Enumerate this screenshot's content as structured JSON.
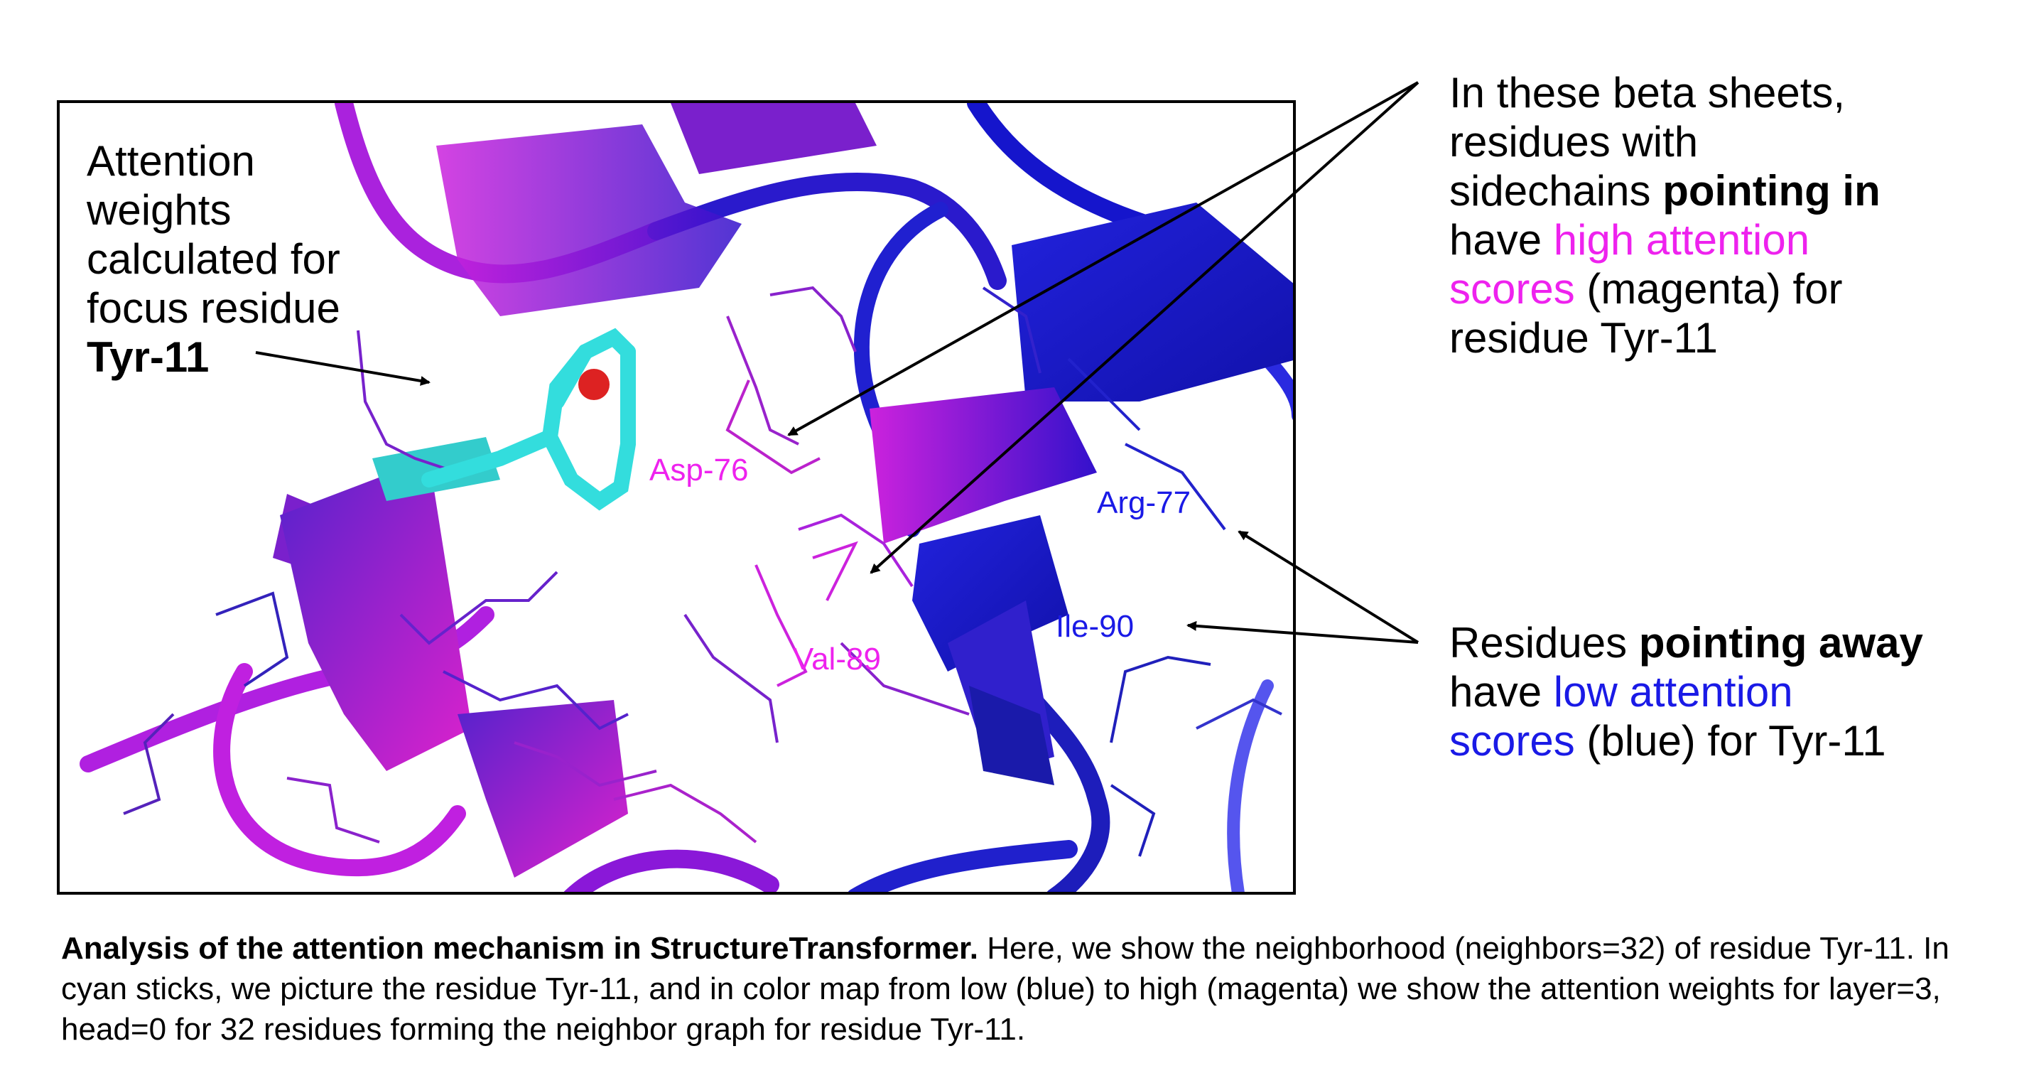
{
  "figure": {
    "residue_labels": {
      "asp76": "Asp-76",
      "val89": "Val-89",
      "arg77": "Arg-77",
      "ile90": "Ile-90"
    },
    "colors": {
      "high_attention": "#ee22ee",
      "low_attention": "#1a1ae6",
      "focus_residue": "#33dddd",
      "oxygen": "#dd2222"
    }
  },
  "annotation_left": {
    "line1": "Attention",
    "line2": "weights",
    "line3": "calculated for",
    "line4": "focus residue",
    "line5": "Tyr-11"
  },
  "annotation_top_right": {
    "line1": "In these beta sheets,",
    "line2": "residues with",
    "line3_plain": "sidechains ",
    "line3_bold": "pointing in",
    "line4_plain": "have ",
    "line4_colored": "high attention",
    "line5_colored": "scores",
    "line5_plain": " (magenta) for",
    "line6": "residue Tyr-11"
  },
  "annotation_bottom_right": {
    "line1_plain": "Residues ",
    "line1_bold": "pointing away",
    "line2_plain": "have ",
    "line2_colored": "low attention",
    "line3_colored": "scores",
    "line3_plain": " (blue) for Tyr-11"
  },
  "caption": {
    "title": "Analysis of the attention mechanism in StructureTransformer.",
    "body": " Here, we show the neighborhood (neighbors=32) of residue Tyr-11. In cyan sticks, we picture the residue Tyr-11, and in color map from low (blue) to high (magenta) we show the attention weights for layer=3, head=0 for 32 residues forming the neighbor graph for residue Tyr-11."
  }
}
